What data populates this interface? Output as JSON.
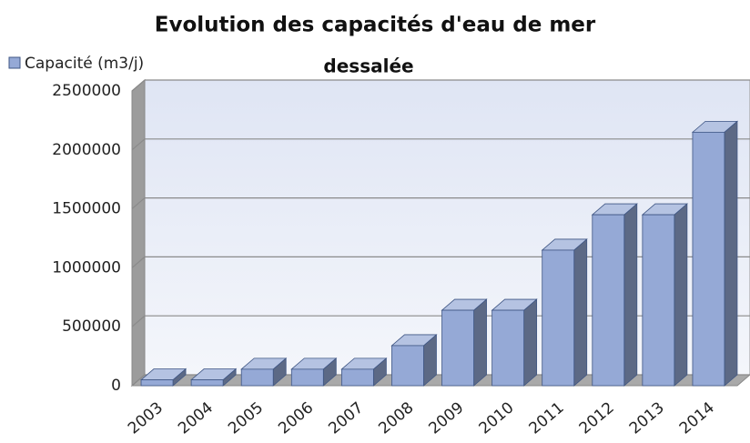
{
  "chart_data": {
    "type": "bar",
    "title": [
      "Evolution des capacités d'eau de mer",
      "dessalée"
    ],
    "categories": [
      "2003",
      "2004",
      "2005",
      "2006",
      "2007",
      "2008",
      "2009",
      "2010",
      "2011",
      "2012",
      "2013",
      "2014"
    ],
    "series": [
      {
        "name": "Capacité (m3/j)",
        "color": "#95a9d6",
        "values": [
          50000,
          50000,
          140000,
          140000,
          140000,
          340000,
          640000,
          640000,
          1150000,
          1450000,
          1450000,
          2150000
        ]
      }
    ],
    "ylim": [
      0,
      2500000
    ],
    "yticks": [
      0,
      500000,
      1000000,
      1500000,
      2000000,
      2500000
    ],
    "grid": true,
    "legend": "top-left"
  }
}
